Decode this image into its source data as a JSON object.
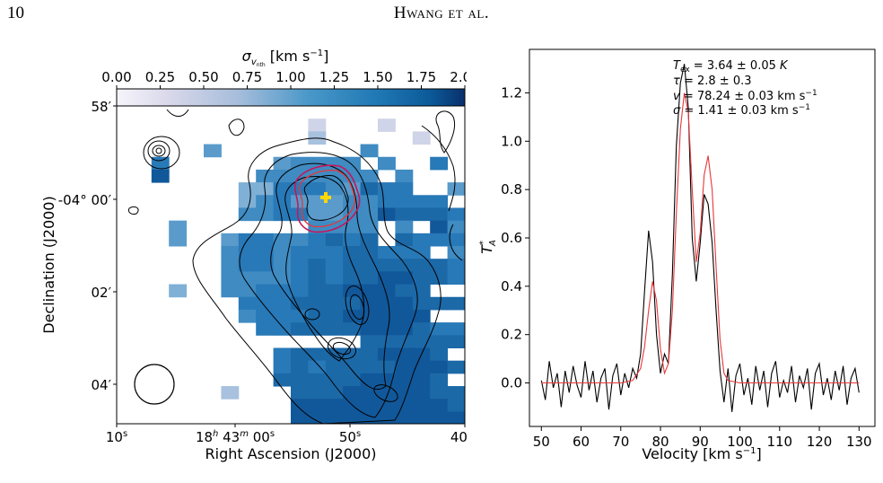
{
  "header": {
    "page_number": "10",
    "running_head": "Hwang et al."
  },
  "map": {
    "colorbar": {
      "label": "σ",
      "label_sub": "v",
      "label_subsub": "nth",
      "label_unit": " [km s",
      "label_exp": "−1",
      "label_close": "]",
      "ticks": [
        "0.00",
        "0.25",
        "0.50",
        "0.75",
        "1.00",
        "1.25",
        "1.50",
        "1.75",
        "2.00"
      ],
      "range": [
        0,
        2
      ],
      "colors": [
        "#f6f4fa",
        "#1f78b4",
        "#08306b"
      ]
    },
    "ylabel": "Declination (J2000)",
    "xlabel": "Right Ascension (J2000)",
    "yticks": [
      {
        "main": "58",
        "unit": "′"
      },
      {
        "main": "-04° 00",
        "unit": "′"
      },
      {
        "main": "02",
        "unit": "′"
      },
      {
        "main": "04",
        "unit": "′"
      }
    ],
    "xticks": [
      {
        "main": "10",
        "unit": "s"
      },
      {
        "main": "18",
        "unit": "h",
        "mid": " 43",
        "unit2": "m",
        "end": " 00",
        "unit3": "s"
      },
      {
        "main": "50",
        "unit": "s"
      },
      {
        "main": "40",
        "unit": "s"
      }
    ],
    "marker_color": "#ffd700",
    "magenta_contour_color": "#c2185b",
    "red_contour_color": "#e8373a"
  },
  "chart_data": {
    "type": "line",
    "xlabel": "Velocity [km s",
    "xlabel_exp": "−1",
    "xlabel_close": "]",
    "ylabel": "T",
    "ylabel_sup": "*",
    "ylabel_sub": "A",
    "xlim": [
      47,
      134
    ],
    "ylim": [
      -0.18,
      1.38
    ],
    "xticks": [
      "50",
      "60",
      "70",
      "80",
      "90",
      "100",
      "110",
      "120",
      "130"
    ],
    "yticks": [
      "0.0",
      "0.2",
      "0.4",
      "0.6",
      "0.8",
      "1.0",
      "1.2"
    ],
    "annotations": [
      {
        "sym": "T",
        "sub": "ex",
        "rest": " = 3.64 ± 0.05 ",
        "tail": "K",
        "tail_italic": true
      },
      {
        "sym": "τ",
        "sub": "",
        "rest": " = 2.8 ± 0.3",
        "tail": "",
        "tail_italic": false
      },
      {
        "sym": "v",
        "sub": "",
        "rest": " = 78.24 ± 0.03 km s",
        "tail": "−1",
        "tail_sup": true
      },
      {
        "sym": "σ",
        "sub": "",
        "rest": " = 1.41 ± 0.03 km s",
        "tail": "−1",
        "tail_sup": true
      }
    ],
    "series": [
      {
        "color": "#000000",
        "x": [
          50,
          51,
          52,
          53,
          54,
          55,
          56,
          57,
          58,
          59,
          60,
          61,
          62,
          63,
          64,
          65,
          66,
          67,
          68,
          69,
          70,
          71,
          72,
          73,
          74,
          75,
          76,
          77,
          78,
          79,
          80,
          81,
          82,
          83,
          84,
          85,
          86,
          87,
          88,
          89,
          90,
          91,
          92,
          93,
          94,
          95,
          96,
          97,
          98,
          99,
          100,
          101,
          102,
          103,
          104,
          105,
          106,
          107,
          108,
          109,
          110,
          111,
          112,
          113,
          114,
          115,
          116,
          117,
          118,
          119,
          120,
          121,
          122,
          123,
          124,
          125,
          126,
          127,
          128,
          129,
          130
        ],
        "values": [
          0.01,
          -0.07,
          0.09,
          -0.02,
          0.04,
          -0.1,
          0.05,
          -0.04,
          0.07,
          -0.01,
          -0.06,
          0.09,
          -0.03,
          0.05,
          -0.08,
          0.02,
          0.06,
          -0.11,
          0.03,
          0.08,
          -0.05,
          0.04,
          -0.02,
          0.06,
          0.02,
          0.12,
          0.38,
          0.63,
          0.5,
          0.2,
          0.04,
          0.12,
          0.08,
          0.45,
          0.98,
          1.24,
          1.32,
          1.14,
          0.6,
          0.42,
          0.58,
          0.78,
          0.74,
          0.58,
          0.3,
          0.05,
          -0.08,
          0.06,
          -0.12,
          0.03,
          0.08,
          -0.05,
          0.02,
          -0.09,
          0.07,
          -0.03,
          0.05,
          -0.1,
          0.04,
          0.09,
          -0.06,
          0.01,
          -0.04,
          0.07,
          -0.08,
          0.03,
          -0.02,
          0.06,
          -0.11,
          0.04,
          0.08,
          -0.05,
          0.02,
          -0.07,
          0.05,
          -0.03,
          0.07,
          -0.09,
          0.02,
          0.06,
          -0.04
        ]
      },
      {
        "color": "#e8373a",
        "x": [
          50,
          60,
          70,
          73,
          75,
          76,
          77,
          78,
          79,
          80,
          81,
          82,
          83,
          84,
          85,
          86,
          87,
          88,
          89,
          90,
          91,
          92,
          93,
          94,
          95,
          96,
          97,
          100,
          110,
          120,
          130
        ],
        "values": [
          0.0,
          0.0,
          0.0,
          0.01,
          0.06,
          0.15,
          0.3,
          0.42,
          0.34,
          0.14,
          0.04,
          0.08,
          0.3,
          0.7,
          1.05,
          1.2,
          1.12,
          0.8,
          0.5,
          0.62,
          0.86,
          0.94,
          0.8,
          0.48,
          0.18,
          0.04,
          0.01,
          0.0,
          0.0,
          0.0,
          0.0
        ]
      }
    ]
  }
}
